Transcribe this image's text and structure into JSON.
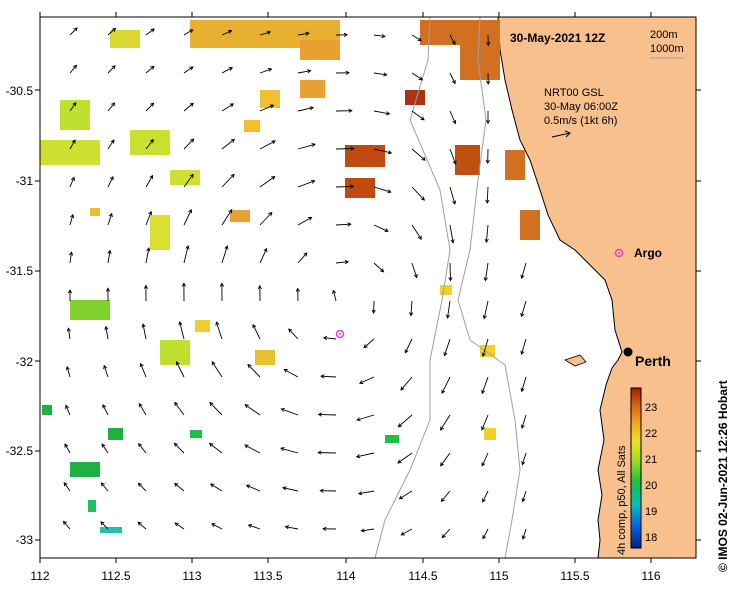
{
  "title": "30-May-2021 12Z",
  "depth_legend": {
    "line1": "200m",
    "line2": "1000m"
  },
  "current_legend": {
    "line1": "NRT00 GSL",
    "line2": "30-May 06:00Z",
    "line3": "0.5m/s (1kt 6h)"
  },
  "markers": {
    "argo_label": "Argo",
    "city_label": "Perth"
  },
  "colorbar": {
    "label": "4h comp, p50, All Sats",
    "ticks": [
      "18",
      "19",
      "20",
      "21",
      "22",
      "23"
    ]
  },
  "credit": "© IMOS 02-Jun-2021 12:26 Hobart",
  "axes": {
    "x_ticks": [
      "112",
      "112.5",
      "113",
      "113.5",
      "114",
      "114.5",
      "115",
      "115.5",
      "116"
    ],
    "y_ticks": [
      "-30.5",
      "-31",
      "-31.5",
      "-32",
      "-32.5",
      "-33"
    ]
  },
  "colors": {
    "land": "#f8c08c",
    "argo_marker": "#e040e0",
    "colorbar_stops": [
      "#002080",
      "#0060e0",
      "#00c0c0",
      "#20c040",
      "#a0e020",
      "#f0e020",
      "#f0a020",
      "#d06010",
      "#a02000"
    ]
  }
}
